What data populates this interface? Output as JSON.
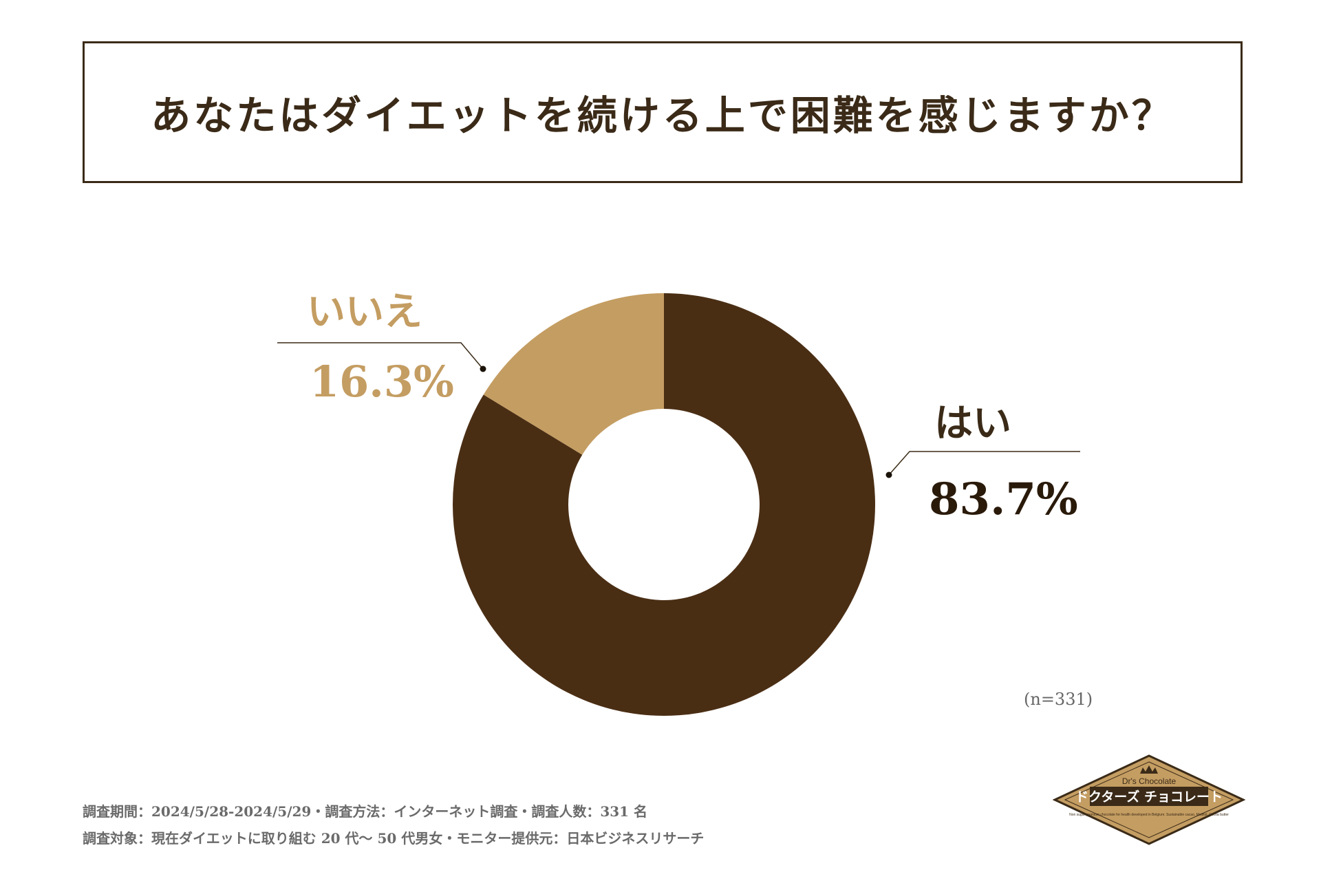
{
  "title": "あなたはダイエットを続ける上で困難を感じますか？",
  "sample_size": "(n=331)",
  "footnotes": {
    "line1": "調査期間：2024/5/28-2024/5/29・調査方法：インターネット調査・調査人数：331 名",
    "line2": "調査対象：現在ダイエットに取り組む 20 代〜 50 代男女・モニター提供元：日本ビジネスリサーチ"
  },
  "logo": {
    "brand_en": "Dr's Chocolate",
    "brand_jp": "ドクターズ チョコレート",
    "tagline": "Non sugar premium chocolate for health developed in Belgium. Sustainable cacao, Maltitol, Cocoa butter"
  },
  "chart_data": {
    "type": "pie",
    "donut": true,
    "labels": [
      "はい",
      "いいえ"
    ],
    "values": [
      83.7,
      16.3
    ],
    "value_labels": [
      "83.7%",
      "16.3%"
    ],
    "colors": [
      "#4a2e14",
      "#c49d62"
    ],
    "start": "12 o'clock, clockwise"
  }
}
